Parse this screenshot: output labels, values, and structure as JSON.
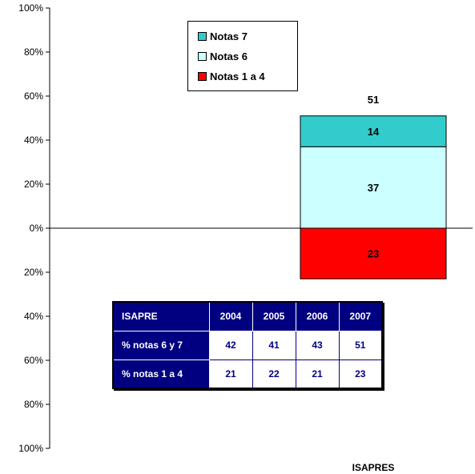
{
  "chart_data": {
    "type": "bar",
    "stacked": true,
    "categories": [
      "ISAPRES"
    ],
    "series": [
      {
        "name": "Notas 1 a 4",
        "values": [
          -23
        ],
        "color": "#ff0000"
      },
      {
        "name": "Notas 6",
        "values": [
          37
        ],
        "color": "#ccffff"
      },
      {
        "name": "Notas 7",
        "values": [
          14
        ],
        "color": "#33cccc"
      }
    ],
    "total_label": "51",
    "segment_labels": {
      "Notas 1 a 4": "23",
      "Notas 6": "37",
      "Notas 7": "14"
    },
    "ylim": [
      -100,
      100
    ],
    "yticks": [
      100,
      80,
      60,
      40,
      20,
      0,
      -20,
      -40,
      -60,
      -80,
      -100
    ],
    "ytick_labels": [
      "100%",
      "80%",
      "60%",
      "40%",
      "20%",
      "0%",
      "20%",
      "40%",
      "60%",
      "80%",
      "100%"
    ],
    "xlabel": "",
    "ylabel": "",
    "grid": false,
    "legend_position": "top-center",
    "legend_order": [
      "Notas 7",
      "Notas 6",
      "Notas 1 a 4"
    ]
  },
  "table": {
    "header": [
      "ISAPRE",
      "2004",
      "2005",
      "2006",
      "2007"
    ],
    "rows": [
      {
        "label": "% notas 6 y 7",
        "values": [
          "42",
          "41",
          "43",
          "51"
        ]
      },
      {
        "label": "% notas 1 a 4",
        "values": [
          "21",
          "22",
          "21",
          "23"
        ]
      }
    ]
  }
}
